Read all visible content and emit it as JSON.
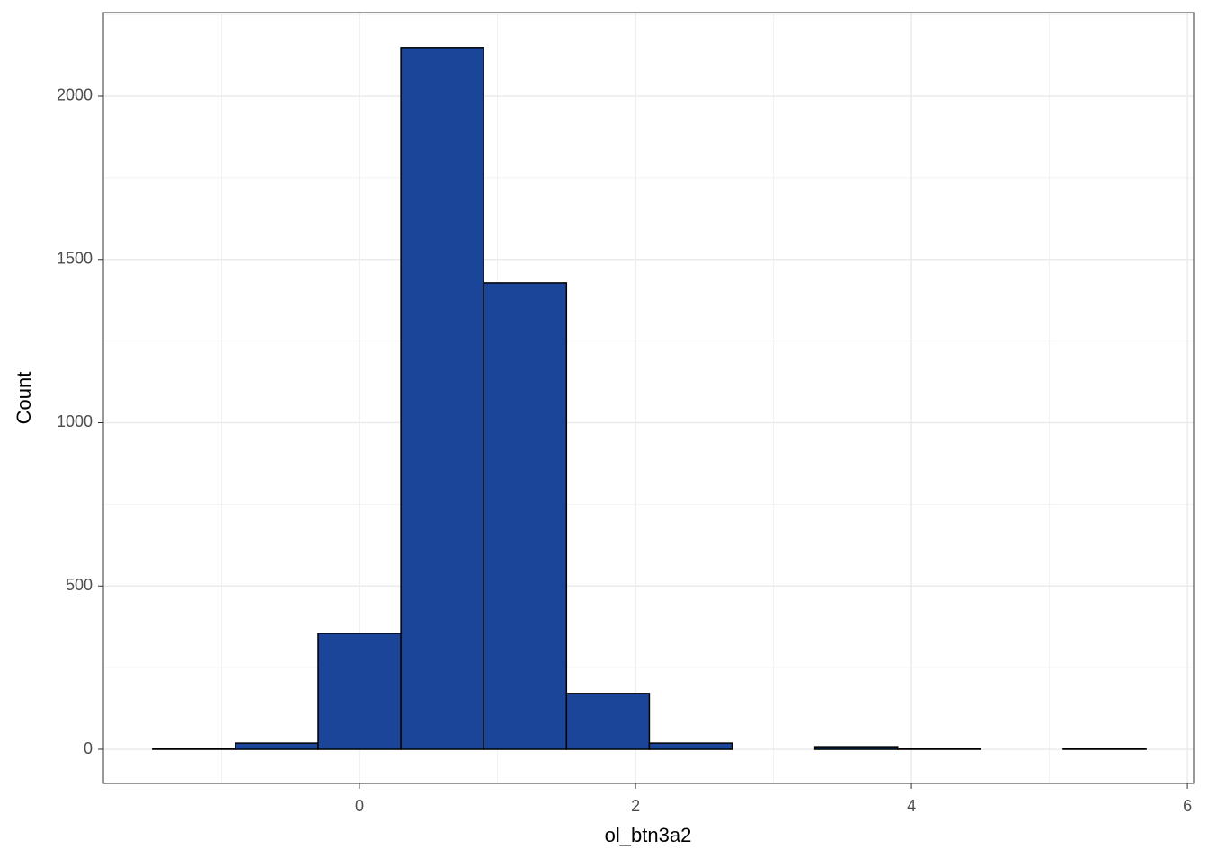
{
  "chart_data": {
    "type": "histogram",
    "x_label": "ol_btn3a2",
    "y_label": "Count",
    "bins": [
      -1.5,
      -0.9,
      -0.3,
      0.3,
      0.9,
      1.5,
      2.1,
      2.7,
      3.3,
      3.9,
      4.5,
      5.1,
      5.7
    ],
    "values": [
      1,
      19,
      355,
      2149,
      1428,
      171,
      19,
      0,
      8,
      1,
      0,
      1
    ],
    "color": "#1a4599",
    "edge_color": "#000000",
    "xlim": [
      -1.857,
      6.045
    ],
    "ylim": [
      -104.5,
      2255.8
    ],
    "xticks": [
      0,
      2,
      4,
      6
    ],
    "yticks": [
      0,
      500,
      1000,
      1500,
      2000
    ],
    "grid": true,
    "minor_grid": true
  }
}
